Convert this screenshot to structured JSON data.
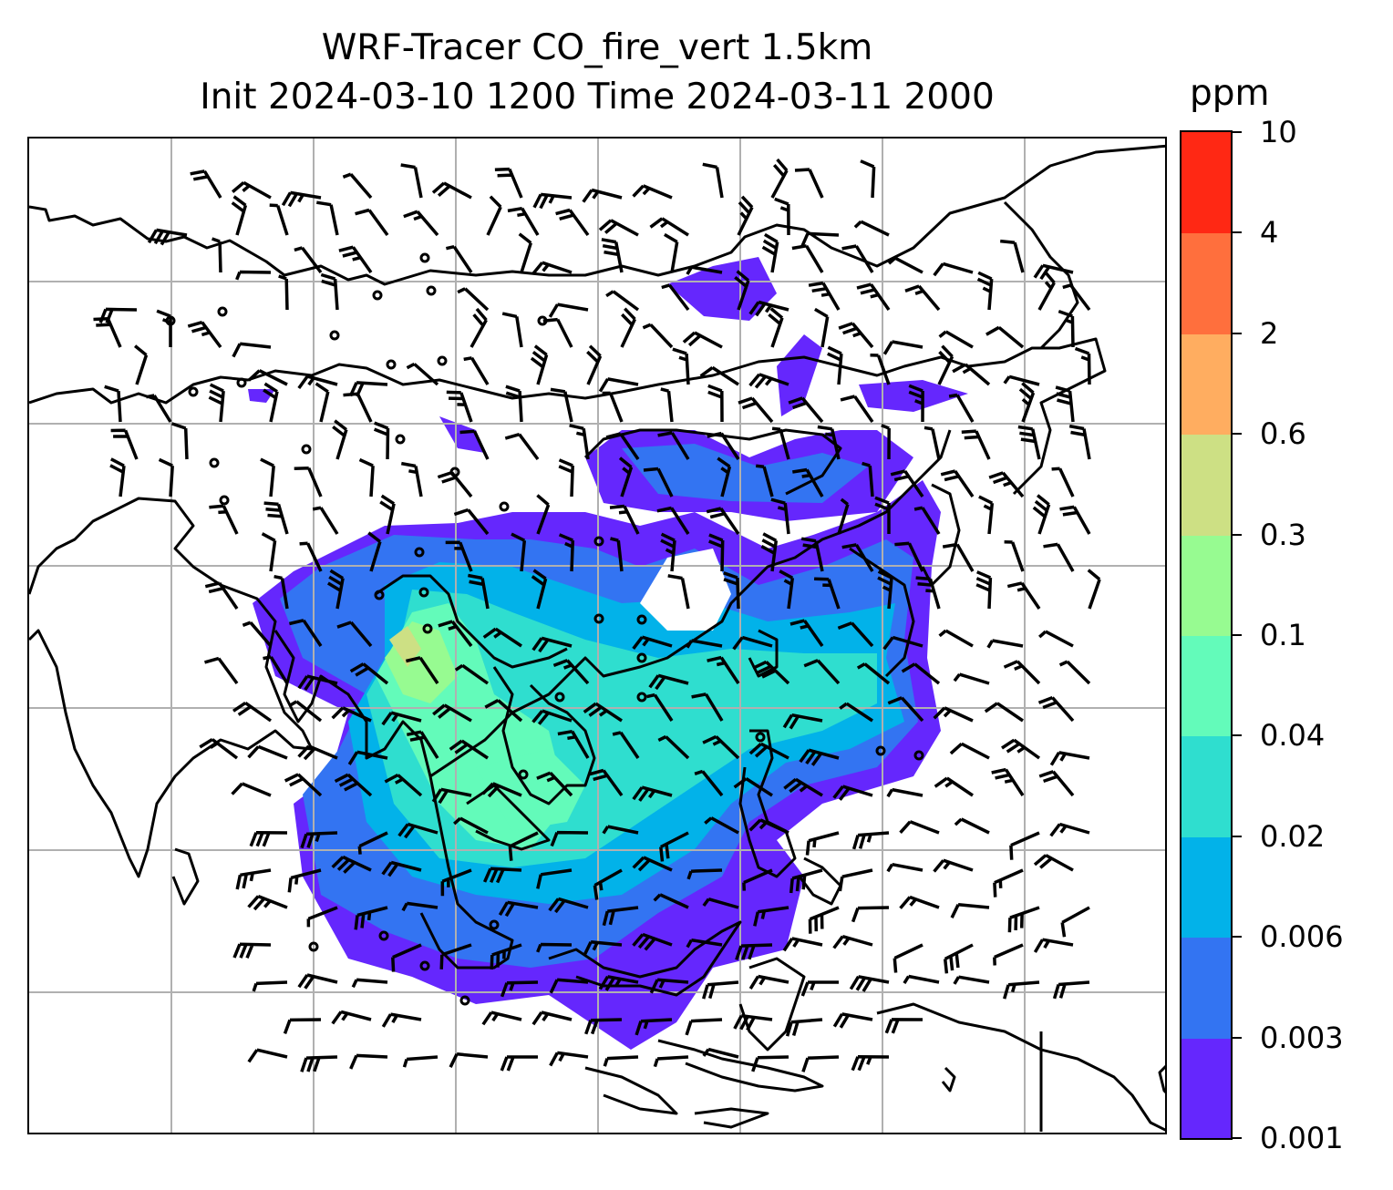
{
  "title_line1": "WRF-Tracer CO_fire_vert 1.5km",
  "title_line2": "Init 2024-03-10 1200 Time 2024-03-11 2000",
  "colorbar": {
    "units": "ppm",
    "levels": [
      "0.001",
      "0.003",
      "0.006",
      "0.02",
      "0.04",
      "0.1",
      "0.3",
      "0.6",
      "2",
      "4",
      "10"
    ],
    "colors": [
      "#6527fd",
      "#3374f2",
      "#02b2e9",
      "#2fdecf",
      "#63fbba",
      "#97fb91",
      "#cde084",
      "#ffad60",
      "#ff6f3d",
      "#ff2814"
    ]
  },
  "map": {
    "gridlines": "on",
    "gridline_color": "#b0b0b0",
    "coastline_color": "#000000",
    "wind_barb_color": "#000000",
    "overlays": [
      "coastlines",
      "wind-barbs",
      "gridlines"
    ]
  }
}
